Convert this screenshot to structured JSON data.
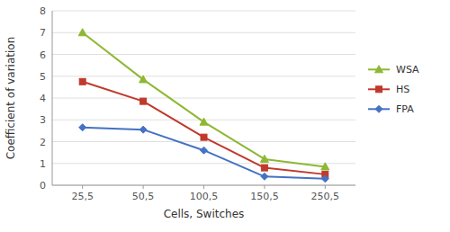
{
  "chart_data": {
    "type": "line",
    "xlabel": "Cells, Switches",
    "ylabel": "Coefficient of variation",
    "categories": [
      "25,5",
      "50,5",
      "100,5",
      "150,5",
      "250,5"
    ],
    "series": [
      {
        "name": "WSA",
        "color": "#8db832",
        "marker": "triangle",
        "values": [
          7.0,
          4.85,
          2.9,
          1.2,
          0.85
        ]
      },
      {
        "name": "HS",
        "color": "#c0392b",
        "marker": "square",
        "values": [
          4.75,
          3.85,
          2.2,
          0.8,
          0.5
        ]
      },
      {
        "name": "FPA",
        "color": "#4472c4",
        "marker": "diamond",
        "values": [
          2.65,
          2.55,
          1.6,
          0.4,
          0.3
        ]
      }
    ],
    "ylim": [
      0,
      8
    ],
    "yticks": [
      0,
      1,
      2,
      3,
      4,
      5,
      6,
      7,
      8
    ],
    "grid": true,
    "legend": "right"
  }
}
